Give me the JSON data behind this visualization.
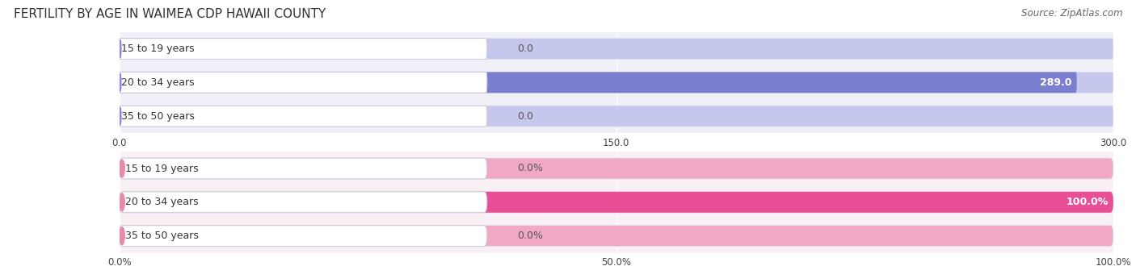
{
  "title": "FERTILITY BY AGE IN WAIMEA CDP HAWAII COUNTY",
  "source": "Source: ZipAtlas.com",
  "top_chart": {
    "categories": [
      "15 to 19 years",
      "20 to 34 years",
      "35 to 50 years"
    ],
    "values": [
      0.0,
      289.0,
      0.0
    ],
    "xlim": [
      0,
      300
    ],
    "xticks": [
      0.0,
      150.0,
      300.0
    ],
    "bar_color_full": "#7b7fcf",
    "bar_color_bg": "#c5c8ec",
    "label_bg_color": "#ffffff",
    "bg_color": "#f0f0f8",
    "value_labels": [
      "0.0",
      "289.0",
      "0.0"
    ],
    "label_circle_color": "#8888d8"
  },
  "bottom_chart": {
    "categories": [
      "15 to 19 years",
      "20 to 34 years",
      "35 to 50 years"
    ],
    "values": [
      0.0,
      100.0,
      0.0
    ],
    "xlim": [
      0,
      100
    ],
    "xticks": [
      0.0,
      50.0,
      100.0
    ],
    "xtick_labels": [
      "0.0%",
      "50.0%",
      "100.0%"
    ],
    "bar_color_full": "#e84f96",
    "bar_color_bg": "#f0a8c4",
    "label_bg_color": "#ffffff",
    "bg_color": "#f8f0f4",
    "value_labels": [
      "0.0%",
      "100.0%",
      "0.0%"
    ],
    "label_circle_color": "#e88aaa"
  },
  "label_fontsize": 9,
  "tick_fontsize": 8.5,
  "title_fontsize": 11,
  "source_fontsize": 8.5,
  "bar_height": 0.62,
  "label_color": "#444444",
  "value_color_white": "#ffffff",
  "value_color_dark": "#555555"
}
